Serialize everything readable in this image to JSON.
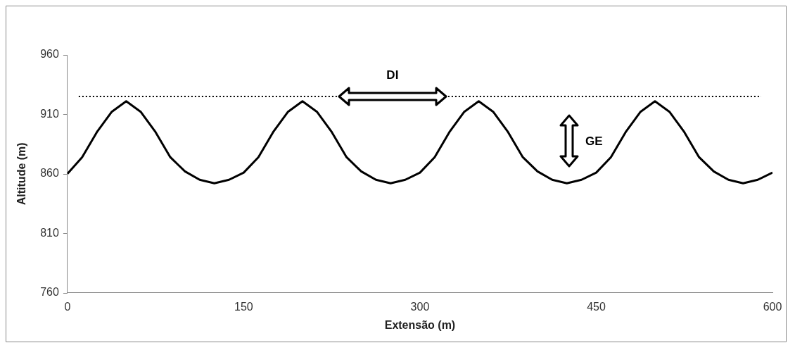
{
  "chart_data": {
    "type": "line",
    "xlabel": "Extensão (m)",
    "ylabel": "Altitude (m)",
    "x": [
      0,
      12.5,
      25,
      37.5,
      50,
      62.5,
      75,
      87.5,
      100,
      112.5,
      125,
      137.5,
      150,
      162.5,
      175,
      187.5,
      200,
      212.5,
      225,
      237.5,
      250,
      262.5,
      275,
      287.5,
      300,
      312.5,
      325,
      337.5,
      350,
      362.5,
      375,
      387.5,
      400,
      412.5,
      425,
      437.5,
      450,
      462.5,
      475,
      487.5,
      500,
      512.5,
      525,
      537.5,
      550,
      562.5,
      575,
      587.5,
      600
    ],
    "series": [
      {
        "color": "#000000",
        "values": [
          860,
          874,
          895,
          912,
          921,
          912,
          895,
          874,
          862,
          855,
          852,
          855,
          861,
          874,
          895,
          912,
          921,
          912,
          895,
          874,
          862,
          855,
          852,
          855,
          861,
          874,
          895,
          912,
          921,
          912,
          895,
          874,
          862,
          855,
          852,
          855,
          861,
          874,
          895,
          912,
          921,
          912,
          895,
          874,
          862,
          855,
          852,
          855,
          861
        ]
      }
    ],
    "xlim": [
      0,
      600
    ],
    "xticks": [
      0,
      150,
      300,
      450,
      600
    ],
    "ylim": [
      760,
      960
    ],
    "yticks": [
      760,
      810,
      860,
      910,
      960
    ],
    "grid": false,
    "legend": false,
    "marker": "none",
    "line_style": "solid",
    "ref_lines": [
      {
        "axis": "y",
        "value": 925,
        "color": "#000000",
        "line_style": "dotted"
      }
    ],
    "annotations": [
      "DI",
      "GE"
    ]
  }
}
